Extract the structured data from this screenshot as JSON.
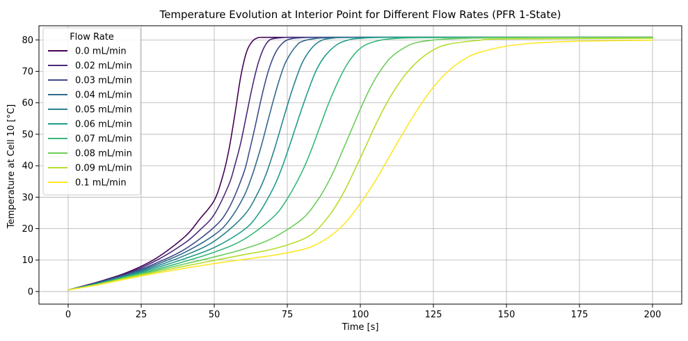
{
  "chart_data": {
    "type": "line",
    "title": "Temperature Evolution at Interior Point for Different Flow Rates (PFR 1-State)",
    "xlabel": "Time [s]",
    "ylabel": "Temperature at Cell 10 [°C]",
    "xlim": [
      -10,
      210
    ],
    "ylim": [
      -4,
      84.5
    ],
    "xticks": [
      0,
      25,
      50,
      75,
      100,
      125,
      150,
      175,
      200
    ],
    "yticks": [
      0,
      10,
      20,
      30,
      40,
      50,
      60,
      70,
      80
    ],
    "grid": true,
    "legend": {
      "title": "Flow Rate",
      "placement": "top-left"
    },
    "series": [
      {
        "name": "0.0 mL/min",
        "color": "#440154",
        "x": [
          0,
          10,
          20,
          30,
          40,
          45,
          50,
          53,
          55,
          57,
          59,
          61,
          63,
          65,
          67,
          70,
          80,
          100,
          150,
          200
        ],
        "y": [
          0.5,
          3.0,
          6.0,
          10.5,
          17.5,
          23.0,
          29.0,
          37.0,
          45.0,
          56.0,
          68.0,
          76.0,
          79.5,
          80.7,
          80.8,
          80.8,
          80.8,
          80.8,
          80.8,
          80.8
        ]
      },
      {
        "name": "0.02 mL/min",
        "color": "#482878",
        "x": [
          0,
          10,
          20,
          30,
          40,
          45,
          50,
          55,
          57,
          59,
          61,
          63,
          65,
          67,
          69,
          72,
          75,
          80,
          100,
          150,
          200
        ],
        "y": [
          0.5,
          2.9,
          5.7,
          9.8,
          15.5,
          19.5,
          24.5,
          34.0,
          40.0,
          47.0,
          56.0,
          65.0,
          72.5,
          77.5,
          80.0,
          80.6,
          80.8,
          80.8,
          80.8,
          80.8,
          80.8
        ]
      },
      {
        "name": "0.03 mL/min",
        "color": "#3e4989",
        "x": [
          0,
          10,
          20,
          30,
          40,
          50,
          55,
          60,
          62,
          64,
          66,
          68,
          70,
          72,
          75,
          80,
          90,
          100,
          150,
          200
        ],
        "y": [
          0.5,
          2.8,
          5.5,
          9.0,
          13.5,
          20.5,
          26.5,
          37.5,
          44.5,
          52.5,
          61.0,
          68.5,
          74.0,
          77.5,
          80.0,
          80.7,
          80.8,
          80.8,
          80.8,
          80.8
        ]
      },
      {
        "name": "0.04 mL/min",
        "color": "#31688e",
        "x": [
          0,
          10,
          20,
          30,
          40,
          50,
          55,
          60,
          63,
          66,
          68,
          70,
          72,
          74,
          76,
          78,
          80,
          85,
          90,
          100,
          150,
          200
        ],
        "y": [
          0.5,
          2.7,
          5.3,
          8.5,
          12.5,
          18.0,
          22.5,
          30.0,
          37.0,
          46.0,
          53.0,
          60.0,
          66.5,
          72.0,
          75.5,
          78.0,
          79.5,
          80.5,
          80.7,
          80.8,
          80.8,
          80.8
        ]
      },
      {
        "name": "0.05 mL/min",
        "color": "#26828e",
        "x": [
          0,
          10,
          20,
          30,
          40,
          50,
          60,
          65,
          68,
          71,
          74,
          77,
          80,
          83,
          86,
          90,
          100,
          150,
          200
        ],
        "y": [
          0.5,
          2.6,
          5.1,
          8.0,
          11.5,
          16.0,
          24.0,
          31.5,
          38.0,
          46.5,
          56.0,
          65.0,
          72.5,
          77.0,
          79.5,
          80.5,
          80.8,
          80.8,
          80.8
        ]
      },
      {
        "name": "0.06 mL/min",
        "color": "#1f9e89",
        "x": [
          0,
          10,
          20,
          30,
          40,
          50,
          60,
          65,
          70,
          73,
          76,
          79,
          82,
          85,
          88,
          92,
          96,
          100,
          110,
          150,
          200
        ],
        "y": [
          0.5,
          2.5,
          4.9,
          7.5,
          10.5,
          14.0,
          19.5,
          24.5,
          32.5,
          39.0,
          47.0,
          55.5,
          63.5,
          70.5,
          75.0,
          78.5,
          80.0,
          80.5,
          80.8,
          80.8,
          80.8
        ]
      },
      {
        "name": "0.07 mL/min",
        "color": "#35b779",
        "x": [
          0,
          10,
          20,
          30,
          40,
          50,
          60,
          70,
          75,
          80,
          83,
          86,
          89,
          92,
          95,
          98,
          101,
          105,
          110,
          120,
          150,
          200
        ],
        "y": [
          0.5,
          2.4,
          4.7,
          7.0,
          9.6,
          12.5,
          16.5,
          23.5,
          29.5,
          38.0,
          44.5,
          52.0,
          59.5,
          66.0,
          71.5,
          75.5,
          78.0,
          79.5,
          80.3,
          80.7,
          80.8,
          80.8
        ]
      },
      {
        "name": "0.08 mL/min",
        "color": "#6ccd5a",
        "x": [
          0,
          10,
          20,
          30,
          40,
          50,
          60,
          70,
          80,
          85,
          88,
          91,
          94,
          97,
          100,
          103,
          106,
          110,
          115,
          120,
          130,
          150,
          200
        ],
        "y": [
          0.5,
          2.3,
          4.5,
          6.6,
          8.8,
          11.0,
          13.5,
          17.0,
          23.0,
          28.5,
          33.0,
          38.5,
          45.0,
          51.5,
          58.0,
          64.0,
          69.0,
          74.0,
          77.5,
          79.3,
          80.3,
          80.7,
          80.8
        ]
      },
      {
        "name": "0.09 mL/min",
        "color": "#b5de2b",
        "x": [
          0,
          10,
          20,
          30,
          40,
          50,
          60,
          70,
          80,
          85,
          90,
          94,
          98,
          102,
          106,
          110,
          115,
          120,
          125,
          130,
          140,
          150,
          200
        ],
        "y": [
          0.5,
          2.2,
          4.3,
          6.2,
          8.1,
          9.9,
          11.7,
          13.5,
          16.5,
          19.5,
          25.0,
          31.0,
          38.5,
          46.5,
          54.5,
          61.5,
          68.5,
          73.5,
          76.8,
          78.6,
          79.8,
          80.3,
          80.5
        ]
      },
      {
        "name": "0.1 mL/min",
        "color": "#fde725",
        "x": [
          0,
          10,
          20,
          30,
          40,
          50,
          60,
          70,
          80,
          85,
          90,
          95,
          100,
          105,
          110,
          115,
          120,
          125,
          130,
          135,
          140,
          150,
          160,
          175,
          200
        ],
        "y": [
          0.5,
          2.1,
          4.0,
          5.8,
          7.4,
          8.9,
          10.2,
          11.5,
          13.3,
          15.0,
          17.8,
          22.0,
          28.0,
          35.0,
          43.0,
          51.0,
          58.5,
          65.0,
          70.0,
          73.5,
          75.8,
          78.0,
          79.0,
          79.6,
          79.9
        ]
      }
    ]
  }
}
